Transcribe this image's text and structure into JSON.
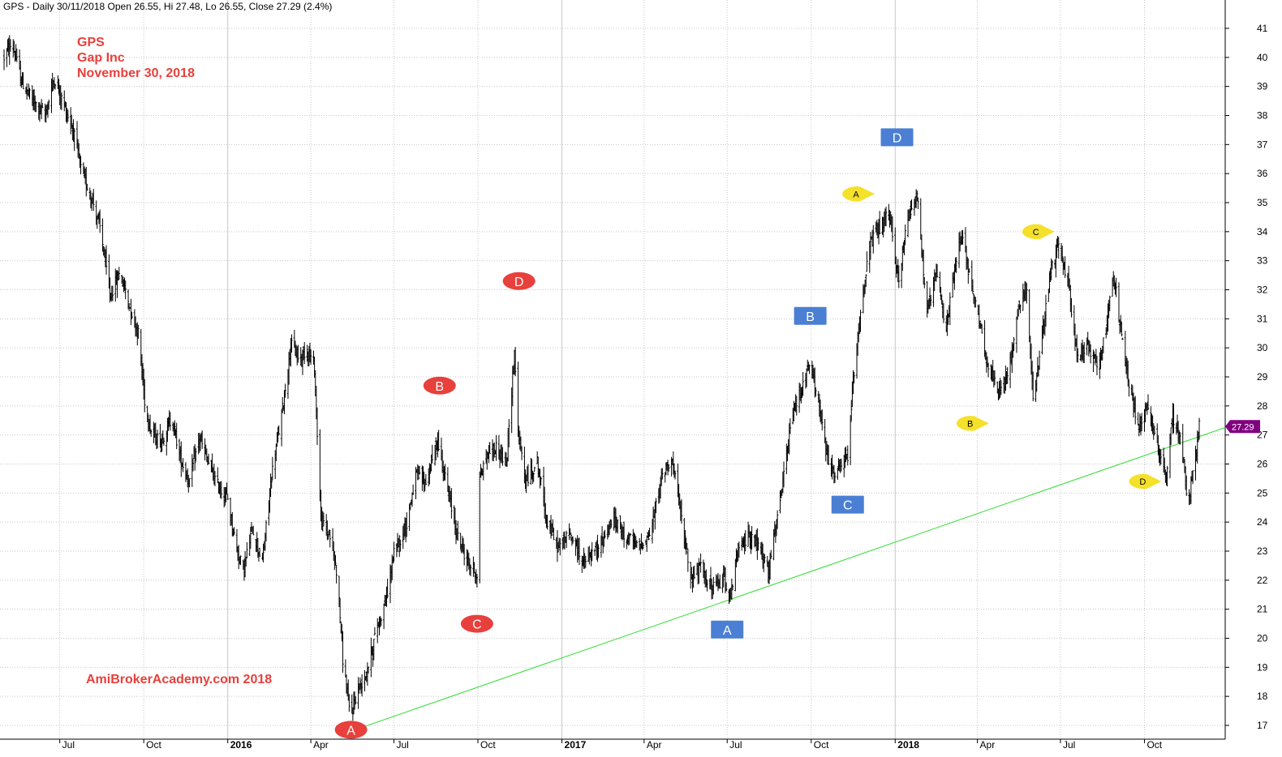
{
  "header": {
    "text": "GPS - Daily 30/11/2018 Open 26.55, Hi 27.48, Lo 26.55, Close 27.29 (2.4%)"
  },
  "overlay": {
    "line1": "GPS",
    "line2": "Gap Inc",
    "line3": "November 30, 2018",
    "watermark": "AmiBrokerAcademy.com  2018"
  },
  "last_price_label": "27.29",
  "colors": {
    "price_bars": "#000000",
    "grid": "#c8c8c8",
    "trendline": "#33dd33",
    "red_marker": "#e8403c",
    "blue_marker": "#4a7fd4",
    "yellow_marker": "#f5e02a",
    "last_price_tag": "#800080",
    "overlay_text": "#e8403c"
  },
  "chart_data": {
    "type": "candlestick",
    "title": "GPS - Daily 30/11/2018 Open 26.55, Hi 27.48, Lo 26.55, Close 27.29 (2.4%)",
    "x_start": "2015-05-01",
    "x_end": "2018-11-30",
    "ylim": [
      16.6,
      41.8
    ],
    "y_ticks": [
      17,
      18,
      19,
      20,
      21,
      22,
      23,
      24,
      25,
      26,
      27,
      28,
      29,
      30,
      31,
      32,
      33,
      34,
      35,
      36,
      37,
      38,
      39,
      40,
      41
    ],
    "x_ticks": [
      {
        "date": "2015-07-01",
        "label": "Jul",
        "bold": false
      },
      {
        "date": "2015-10-01",
        "label": "Oct",
        "bold": false
      },
      {
        "date": "2016-01-01",
        "label": "2016",
        "bold": true
      },
      {
        "date": "2016-04-01",
        "label": "Apr",
        "bold": false
      },
      {
        "date": "2016-07-01",
        "label": "Jul",
        "bold": false
      },
      {
        "date": "2016-10-01",
        "label": "Oct",
        "bold": false
      },
      {
        "date": "2017-01-01",
        "label": "2017",
        "bold": true
      },
      {
        "date": "2017-04-01",
        "label": "Apr",
        "bold": false
      },
      {
        "date": "2017-07-01",
        "label": "Jul",
        "bold": false
      },
      {
        "date": "2017-10-01",
        "label": "Oct",
        "bold": false
      },
      {
        "date": "2018-01-01",
        "label": "2018",
        "bold": true
      },
      {
        "date": "2018-04-01",
        "label": "Apr",
        "bold": false
      },
      {
        "date": "2018-07-01",
        "label": "Jul",
        "bold": false
      },
      {
        "date": "2018-10-01",
        "label": "Oct",
        "bold": false
      }
    ],
    "grid": true,
    "price_path": [
      [
        "2015-05-01",
        40.0
      ],
      [
        "2015-05-10",
        40.5
      ],
      [
        "2015-05-20",
        39.2
      ],
      [
        "2015-06-01",
        38.5
      ],
      [
        "2015-06-15",
        38.0
      ],
      [
        "2015-06-25",
        39.3
      ],
      [
        "2015-07-05",
        38.4
      ],
      [
        "2015-07-15",
        37.6
      ],
      [
        "2015-07-25",
        36.0
      ],
      [
        "2015-08-05",
        35.2
      ],
      [
        "2015-08-15",
        34.0
      ],
      [
        "2015-08-25",
        31.8
      ],
      [
        "2015-09-05",
        32.6
      ],
      [
        "2015-09-15",
        31.5
      ],
      [
        "2015-09-25",
        30.5
      ],
      [
        "2015-10-02",
        28.2
      ],
      [
        "2015-10-10",
        27.0
      ],
      [
        "2015-10-20",
        26.8
      ],
      [
        "2015-11-01",
        27.6
      ],
      [
        "2015-11-10",
        26.2
      ],
      [
        "2015-11-20",
        25.4
      ],
      [
        "2015-12-01",
        26.9
      ],
      [
        "2015-12-10",
        26.1
      ],
      [
        "2015-12-20",
        25.3
      ],
      [
        "2016-01-01",
        24.8
      ],
      [
        "2016-01-10",
        23.2
      ],
      [
        "2016-01-18",
        22.3
      ],
      [
        "2016-01-28",
        23.8
      ],
      [
        "2016-02-08",
        22.6
      ],
      [
        "2016-02-18",
        25.6
      ],
      [
        "2016-03-01",
        27.9
      ],
      [
        "2016-03-10",
        30.1
      ],
      [
        "2016-03-20",
        29.6
      ],
      [
        "2016-03-28",
        30.0
      ],
      [
        "2016-04-05",
        29.3
      ],
      [
        "2016-04-12",
        24.1
      ],
      [
        "2016-04-22",
        23.5
      ],
      [
        "2016-04-30",
        22.2
      ],
      [
        "2016-05-06",
        19.3
      ],
      [
        "2016-05-14",
        17.3
      ],
      [
        "2016-05-22",
        18.2
      ],
      [
        "2016-06-01",
        18.8
      ],
      [
        "2016-06-12",
        20.3
      ],
      [
        "2016-06-22",
        21.3
      ],
      [
        "2016-07-01",
        22.9
      ],
      [
        "2016-07-15",
        24.0
      ],
      [
        "2016-07-25",
        25.6
      ],
      [
        "2016-08-05",
        25.4
      ],
      [
        "2016-08-18",
        26.8
      ],
      [
        "2016-08-28",
        25.2
      ],
      [
        "2016-09-08",
        23.6
      ],
      [
        "2016-09-20",
        22.6
      ],
      [
        "2016-09-30",
        22.2
      ],
      [
        "2016-10-02",
        25.4
      ],
      [
        "2016-10-12",
        26.4
      ],
      [
        "2016-10-22",
        26.6
      ],
      [
        "2016-11-01",
        25.9
      ],
      [
        "2016-11-10",
        29.9
      ],
      [
        "2016-11-14",
        27.1
      ],
      [
        "2016-11-22",
        25.4
      ],
      [
        "2016-12-05",
        26.1
      ],
      [
        "2016-12-15",
        24.1
      ],
      [
        "2016-12-28",
        23.1
      ],
      [
        "2017-01-10",
        23.6
      ],
      [
        "2017-01-25",
        22.6
      ],
      [
        "2017-02-10",
        23.1
      ],
      [
        "2017-02-25",
        24.1
      ],
      [
        "2017-03-10",
        23.6
      ],
      [
        "2017-03-25",
        23.1
      ],
      [
        "2017-04-08",
        23.6
      ],
      [
        "2017-04-20",
        25.5
      ],
      [
        "2017-05-01",
        26.3
      ],
      [
        "2017-05-12",
        24.1
      ],
      [
        "2017-05-22",
        22.1
      ],
      [
        "2017-06-02",
        22.4
      ],
      [
        "2017-06-15",
        21.7
      ],
      [
        "2017-06-28",
        22.1
      ],
      [
        "2017-07-05",
        21.4
      ],
      [
        "2017-07-12",
        22.9
      ],
      [
        "2017-07-25",
        23.6
      ],
      [
        "2017-08-05",
        23.1
      ],
      [
        "2017-08-15",
        22.3
      ],
      [
        "2017-08-25",
        24.1
      ],
      [
        "2017-09-01",
        25.6
      ],
      [
        "2017-09-10",
        27.6
      ],
      [
        "2017-09-20",
        28.6
      ],
      [
        "2017-09-30",
        29.4
      ],
      [
        "2017-10-08",
        28.3
      ],
      [
        "2017-10-18",
        26.3
      ],
      [
        "2017-10-28",
        25.6
      ],
      [
        "2017-11-10",
        26.3
      ],
      [
        "2017-11-18",
        29.6
      ],
      [
        "2017-11-25",
        31.6
      ],
      [
        "2017-12-05",
        33.6
      ],
      [
        "2017-12-15",
        34.1
      ],
      [
        "2017-12-25",
        34.6
      ],
      [
        "2018-01-05",
        32.3
      ],
      [
        "2018-01-15",
        34.6
      ],
      [
        "2018-01-25",
        35.3
      ],
      [
        "2018-02-05",
        31.1
      ],
      [
        "2018-02-15",
        32.6
      ],
      [
        "2018-02-25",
        30.6
      ],
      [
        "2018-03-05",
        32.2
      ],
      [
        "2018-03-15",
        34.1
      ],
      [
        "2018-03-25",
        32.1
      ],
      [
        "2018-04-05",
        30.6
      ],
      [
        "2018-04-15",
        29.1
      ],
      [
        "2018-04-25",
        28.4
      ],
      [
        "2018-05-05",
        29.1
      ],
      [
        "2018-05-15",
        31.2
      ],
      [
        "2018-05-25",
        32.2
      ],
      [
        "2018-06-01",
        28.1
      ],
      [
        "2018-06-10",
        30.1
      ],
      [
        "2018-06-20",
        32.6
      ],
      [
        "2018-06-30",
        33.6
      ],
      [
        "2018-07-10",
        32.1
      ],
      [
        "2018-07-20",
        29.6
      ],
      [
        "2018-07-30",
        30.1
      ],
      [
        "2018-08-10",
        29.4
      ],
      [
        "2018-08-20",
        30.6
      ],
      [
        "2018-08-28",
        32.6
      ],
      [
        "2018-09-05",
        30.6
      ],
      [
        "2018-09-15",
        28.6
      ],
      [
        "2018-09-25",
        27.3
      ],
      [
        "2018-10-05",
        28.1
      ],
      [
        "2018-10-15",
        26.6
      ],
      [
        "2018-10-25",
        25.6
      ],
      [
        "2018-11-01",
        27.6
      ],
      [
        "2018-11-10",
        26.9
      ],
      [
        "2018-11-18",
        24.6
      ],
      [
        "2018-11-24",
        25.9
      ],
      [
        "2018-11-30",
        27.29
      ]
    ],
    "trendline": {
      "start": [
        "2016-05-15",
        16.8
      ],
      "end": [
        "2018-11-30",
        27.2
      ],
      "color": "#33dd33"
    },
    "last_close": 27.29,
    "markers": [
      {
        "label": "A",
        "style": "red",
        "date": "2016-05-15",
        "price": 16.85
      },
      {
        "label": "B",
        "style": "red",
        "date": "2016-08-20",
        "price": 28.7
      },
      {
        "label": "C",
        "style": "red",
        "date": "2016-09-30",
        "price": 20.5
      },
      {
        "label": "D",
        "style": "red",
        "date": "2016-11-15",
        "price": 32.3
      },
      {
        "label": "A",
        "style": "blue",
        "date": "2017-07-01",
        "price": 20.3
      },
      {
        "label": "B",
        "style": "blue",
        "date": "2017-09-30",
        "price": 31.1
      },
      {
        "label": "C",
        "style": "blue",
        "date": "2017-11-10",
        "price": 24.6
      },
      {
        "label": "D",
        "style": "blue",
        "date": "2018-01-03",
        "price": 37.25
      },
      {
        "label": "A",
        "style": "yellow",
        "date": "2017-11-20",
        "price": 35.3
      },
      {
        "label": "B",
        "style": "yellow",
        "date": "2018-03-25",
        "price": 27.4
      },
      {
        "label": "C",
        "style": "yellow",
        "date": "2018-06-05",
        "price": 34.0
      },
      {
        "label": "D",
        "style": "yellow",
        "date": "2018-09-30",
        "price": 25.4
      }
    ]
  }
}
